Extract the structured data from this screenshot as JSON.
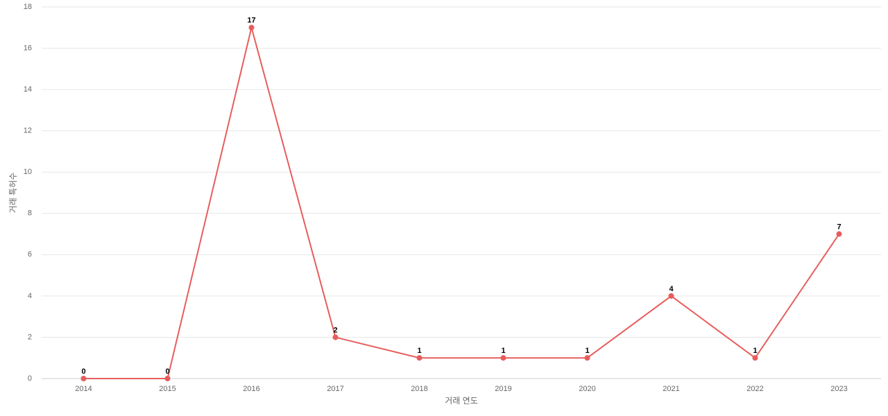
{
  "chart_data": {
    "type": "line",
    "x_label": "거래 연도",
    "y_label": "거래 특허수",
    "categories": [
      "2014",
      "2015",
      "2016",
      "2017",
      "2018",
      "2019",
      "2020",
      "2021",
      "2022",
      "2023"
    ],
    "values": [
      0,
      0,
      17,
      2,
      1,
      1,
      1,
      4,
      1,
      7
    ],
    "color": "#e85c5c",
    "ylim": [
      0,
      18
    ],
    "yticks": [
      0,
      2,
      4,
      6,
      8,
      10,
      12,
      14,
      16,
      18
    ],
    "grid": true
  }
}
